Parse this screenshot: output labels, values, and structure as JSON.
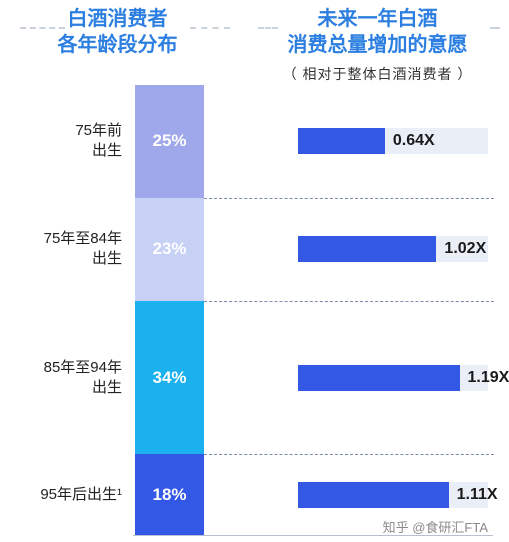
{
  "header": {
    "left_lines": [
      "白酒消费者",
      "各年龄段分布"
    ],
    "right_lines": [
      "未来一年白酒",
      "消费总量增加的意愿"
    ],
    "right_sub": "（ 相对于整体白酒消费者 ）"
  },
  "chart_data": [
    {
      "type": "bar",
      "title": "白酒消费者各年龄段分布",
      "categories": [
        "75年前出生",
        "75年至84年出生",
        "85年至94年出生",
        "95年后出生¹"
      ],
      "values": [
        25,
        23,
        34,
        18
      ],
      "labels": [
        "25%",
        "23%",
        "34%",
        "18%"
      ],
      "unit": "%",
      "stacked": true,
      "colors": [
        "#9fa8ea",
        "#c7d0f5",
        "#1bb1ef",
        "#3358e6"
      ]
    },
    {
      "type": "bar",
      "title": "未来一年白酒消费总量增加的意愿",
      "subtitle": "（ 相对于整体白酒消费者 ）",
      "categories": [
        "75年前出生",
        "75年至84年出生",
        "85年至94年出生",
        "95年后出生¹"
      ],
      "values": [
        0.64,
        1.02,
        1.19,
        1.11
      ],
      "labels": [
        "0.64X",
        "1.02X",
        "1.19X",
        "1.11X"
      ],
      "orientation": "horizontal",
      "bar_color": "#3358e6",
      "track_color": "#e9eef7"
    }
  ],
  "categories_display": [
    [
      "75年前",
      "出生"
    ],
    [
      "75年至84年",
      "出生"
    ],
    [
      "85年至94年",
      "出生"
    ],
    [
      "95年后出生¹"
    ]
  ],
  "watermark": "知乎 @食研汇FTA"
}
